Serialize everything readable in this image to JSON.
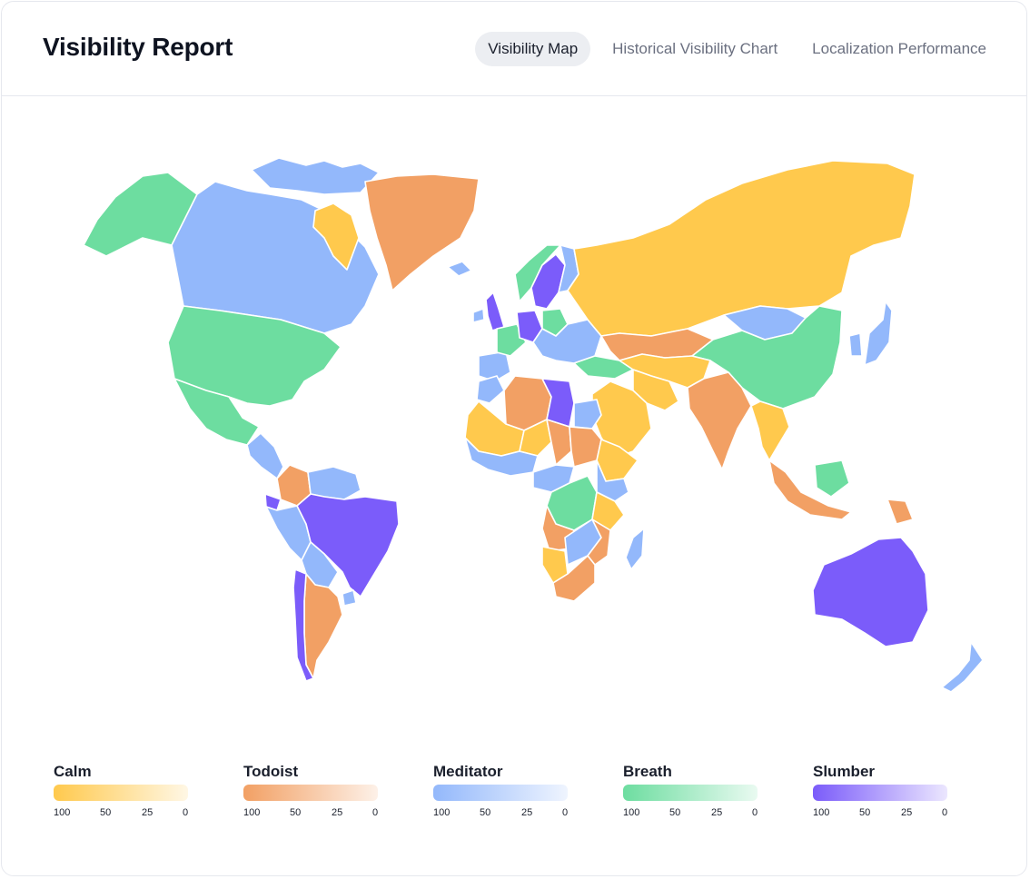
{
  "header": {
    "title": "Visibility Report",
    "tabs": [
      {
        "label": "Visibility Map",
        "active": true
      },
      {
        "label": "Historical Visibility Chart",
        "active": false
      },
      {
        "label": "Localization Performance",
        "active": false
      }
    ]
  },
  "colors": {
    "calm": "#FFC94D",
    "todoist": "#F2A064",
    "meditator": "#93B8FB",
    "breath": "#6DDDA0",
    "slumber": "#7B5CFA"
  },
  "legend": [
    {
      "name": "Calm",
      "color": "#FFC94D",
      "ticks": [
        "100",
        "50",
        "25",
        "0"
      ]
    },
    {
      "name": "Todoist",
      "color": "#F2A064",
      "ticks": [
        "100",
        "50",
        "25",
        "0"
      ]
    },
    {
      "name": "Meditator",
      "color": "#93B8FB",
      "ticks": [
        "100",
        "50",
        "25",
        "0"
      ]
    },
    {
      "name": "Breath",
      "color": "#6DDDA0",
      "ticks": [
        "100",
        "50",
        "25",
        "0"
      ]
    },
    {
      "name": "Slumber",
      "color": "#7B5CFA",
      "ticks": [
        "100",
        "50",
        "25",
        "0"
      ]
    }
  ],
  "map": {
    "regions": [
      {
        "name": "alaska",
        "app": "breath"
      },
      {
        "name": "canada",
        "app": "meditator"
      },
      {
        "name": "canadian-arctic-islands",
        "app": "meditator"
      },
      {
        "name": "baffin-island",
        "app": "calm"
      },
      {
        "name": "greenland",
        "app": "todoist"
      },
      {
        "name": "iceland",
        "app": "meditator"
      },
      {
        "name": "usa",
        "app": "breath"
      },
      {
        "name": "mexico",
        "app": "breath"
      },
      {
        "name": "central-america",
        "app": "meditator"
      },
      {
        "name": "colombia",
        "app": "todoist"
      },
      {
        "name": "venezuela",
        "app": "meditator"
      },
      {
        "name": "ecuador",
        "app": "slumber"
      },
      {
        "name": "peru",
        "app": "meditator"
      },
      {
        "name": "brazil",
        "app": "slumber"
      },
      {
        "name": "bolivia",
        "app": "meditator"
      },
      {
        "name": "argentina",
        "app": "todoist"
      },
      {
        "name": "chile",
        "app": "slumber"
      },
      {
        "name": "uruguay",
        "app": "meditator"
      },
      {
        "name": "united-kingdom",
        "app": "slumber"
      },
      {
        "name": "ireland",
        "app": "meditator"
      },
      {
        "name": "france",
        "app": "breath"
      },
      {
        "name": "iberia",
        "app": "meditator"
      },
      {
        "name": "germany",
        "app": "slumber"
      },
      {
        "name": "poland",
        "app": "breath"
      },
      {
        "name": "norway",
        "app": "breath"
      },
      {
        "name": "sweden",
        "app": "slumber"
      },
      {
        "name": "finland",
        "app": "meditator"
      },
      {
        "name": "eastern-europe",
        "app": "meditator"
      },
      {
        "name": "turkey",
        "app": "breath"
      },
      {
        "name": "russia",
        "app": "calm"
      },
      {
        "name": "kazakhstan",
        "app": "todoist"
      },
      {
        "name": "mongolia",
        "app": "meditator"
      },
      {
        "name": "china",
        "app": "breath"
      },
      {
        "name": "central-asia",
        "app": "calm"
      },
      {
        "name": "iran",
        "app": "calm"
      },
      {
        "name": "arabia",
        "app": "calm"
      },
      {
        "name": "india",
        "app": "todoist"
      },
      {
        "name": "southeast-asia",
        "app": "calm"
      },
      {
        "name": "japan",
        "app": "meditator"
      },
      {
        "name": "korea",
        "app": "meditator"
      },
      {
        "name": "indonesia",
        "app": "todoist"
      },
      {
        "name": "borneo",
        "app": "breath"
      },
      {
        "name": "papua",
        "app": "todoist"
      },
      {
        "name": "australia",
        "app": "slumber"
      },
      {
        "name": "new-zealand",
        "app": "meditator"
      },
      {
        "name": "morocco",
        "app": "meditator"
      },
      {
        "name": "algeria",
        "app": "todoist"
      },
      {
        "name": "libya",
        "app": "slumber"
      },
      {
        "name": "egypt",
        "app": "meditator"
      },
      {
        "name": "mauritania-mali",
        "app": "calm"
      },
      {
        "name": "niger",
        "app": "calm"
      },
      {
        "name": "chad",
        "app": "todoist"
      },
      {
        "name": "sudan",
        "app": "todoist"
      },
      {
        "name": "west-africa",
        "app": "meditator"
      },
      {
        "name": "ethiopia",
        "app": "calm"
      },
      {
        "name": "central-africa",
        "app": "meditator"
      },
      {
        "name": "dr-congo",
        "app": "breath"
      },
      {
        "name": "east-africa",
        "app": "meditator"
      },
      {
        "name": "tanzania",
        "app": "calm"
      },
      {
        "name": "angola",
        "app": "todoist"
      },
      {
        "name": "namibia",
        "app": "calm"
      },
      {
        "name": "zambia-zimbabwe",
        "app": "meditator"
      },
      {
        "name": "mozambique",
        "app": "todoist"
      },
      {
        "name": "south-africa",
        "app": "todoist"
      },
      {
        "name": "madagascar",
        "app": "meditator"
      }
    ]
  }
}
